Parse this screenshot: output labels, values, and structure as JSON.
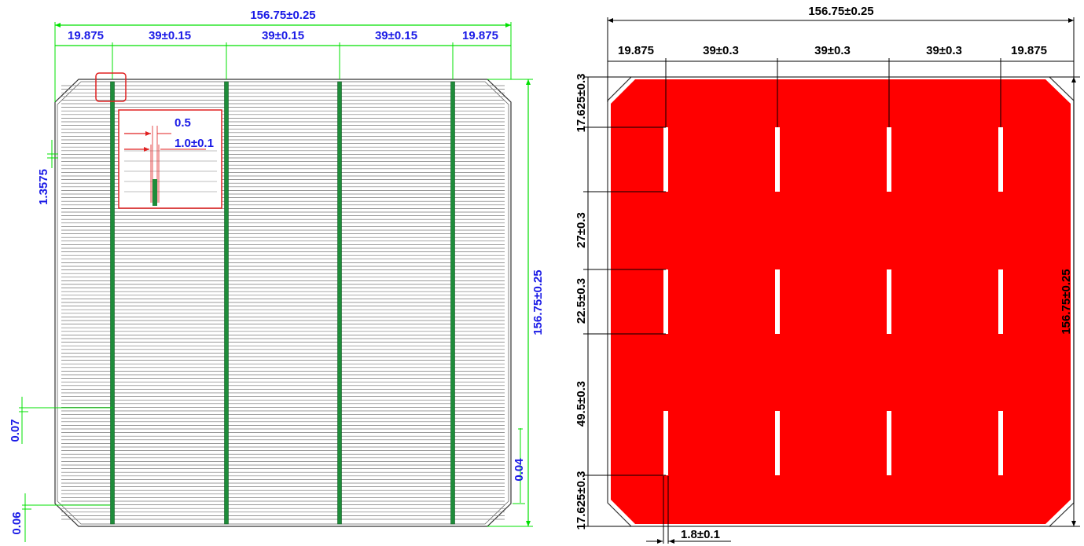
{
  "colors": {
    "front_dim_line": "#00e000",
    "front_dim_text": "#1a1ae6",
    "busbar": "#1e8c3a",
    "grid_line": "#555555",
    "inset_frame": "#e02020",
    "back_fill": "#ff0000",
    "back_dim_line": "#000000",
    "back_dim_text": "#000000"
  },
  "front": {
    "overall_width": "156.75±0.25",
    "segments": [
      "19.875",
      "39±0.15",
      "39±0.15",
      "39±0.15",
      "19.875"
    ],
    "overall_height": "156.75±0.25",
    "finger_pitch": "1.3575",
    "bottom_gap_1": "0.07",
    "bottom_gap_2": "0.06",
    "right_gap": "0.04",
    "detail_width": "0.5",
    "detail_busbar": "1.0±0.1"
  },
  "back": {
    "overall_width": "156.75±0.25",
    "segments": [
      "19.875",
      "39±0.3",
      "39±0.3",
      "39±0.3",
      "19.875"
    ],
    "overall_height": "156.75±0.25",
    "vertical_dims": [
      "17.625±0.3",
      "27±0.3",
      "22.5±0.3",
      "49.5±0.3",
      "17.625±0.3"
    ],
    "pad_width": "1.8±0.1"
  }
}
